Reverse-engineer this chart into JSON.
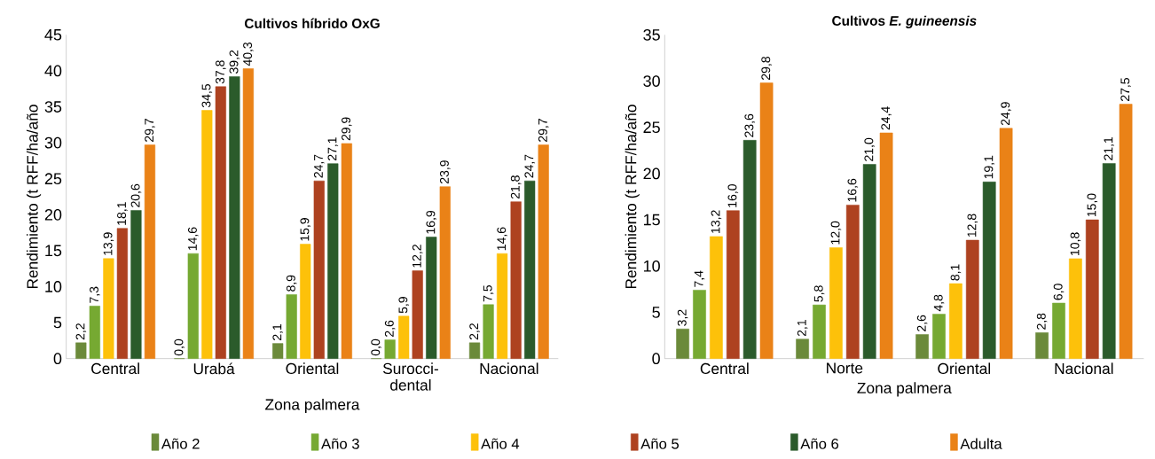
{
  "chart_data": [
    {
      "type": "bar",
      "title": "Cultivos híbrido OxG",
      "xlabel": "Zona palmera",
      "ylabel": "Rendimiento (t RFF/ha/año",
      "categories": [
        "Central",
        "Urabá",
        "Oriental",
        "Surocci-dental",
        "Nacional"
      ],
      "ylim": [
        0,
        45
      ],
      "yticks": [
        0,
        5,
        10,
        15,
        20,
        25,
        30,
        35,
        40,
        45
      ],
      "legend": "bottom",
      "series": [
        {
          "name": "Año 2",
          "color": "#6b8a3a",
          "values": [
            2.2,
            0.0,
            2.1,
            0.0,
            2.2
          ],
          "value_labels": [
            "2,2",
            "0,0",
            "2,1",
            "0,0",
            "2,2"
          ]
        },
        {
          "name": "Año 3",
          "color": "#76a932",
          "values": [
            7.3,
            14.6,
            8.9,
            2.6,
            7.5
          ],
          "value_labels": [
            "7,3",
            "14,6",
            "8,9",
            "2,6",
            "7,5"
          ]
        },
        {
          "name": "Año 4",
          "color": "#fdc10a",
          "values": [
            13.9,
            34.5,
            15.9,
            5.9,
            14.6
          ],
          "value_labels": [
            "13,9",
            "34,5",
            "15,9",
            "5,9",
            "14,6"
          ]
        },
        {
          "name": "Año 5",
          "color": "#ae4220",
          "values": [
            18.1,
            37.8,
            24.7,
            12.2,
            21.8
          ],
          "value_labels": [
            "18,1",
            "37,8",
            "24,7",
            "12,2",
            "21,8"
          ]
        },
        {
          "name": "Año 6",
          "color": "#2b5b2b",
          "values": [
            20.6,
            39.2,
            27.1,
            16.9,
            24.7
          ],
          "value_labels": [
            "20,6",
            "39,2",
            "27,1",
            "16,9",
            "24,7"
          ]
        },
        {
          "name": "Adulta",
          "color": "#ea8217",
          "values": [
            29.7,
            40.3,
            29.9,
            23.9,
            29.7
          ],
          "value_labels": [
            "29,7",
            "40,3",
            "29,9",
            "23,9",
            "29,7"
          ]
        }
      ]
    },
    {
      "type": "bar",
      "title": "Cultivos *E. guineensis*",
      "xlabel": "Zona palmera",
      "ylabel": "Rendimiento (t RFF/ha/año",
      "categories": [
        "Central",
        "Norte",
        "Oriental",
        "Nacional"
      ],
      "ylim": [
        0,
        35
      ],
      "yticks": [
        0,
        5,
        10,
        15,
        20,
        25,
        30,
        35
      ],
      "series": [
        {
          "color": "#6b8a3a",
          "values": [
            3.2,
            2.1,
            2.6,
            2.8
          ],
          "value_labels": [
            "3,2",
            "2,1",
            "2,6",
            "2,8"
          ]
        },
        {
          "color": "#76a932",
          "values": [
            7.4,
            5.8,
            4.8,
            6.0
          ],
          "value_labels": [
            "7,4",
            "5,8",
            "4,8",
            "6,0"
          ]
        },
        {
          "color": "#fdc10a",
          "values": [
            13.2,
            12.0,
            8.1,
            10.8
          ],
          "value_labels": [
            "13,2",
            "12,0",
            "8,1",
            "10,8"
          ]
        },
        {
          "color": "#ae4220",
          "values": [
            16.0,
            16.6,
            12.8,
            15.0
          ],
          "value_labels": [
            "16,0",
            "16,6",
            "12,8",
            "15,0"
          ]
        },
        {
          "color": "#2b5b2b",
          "values": [
            23.6,
            21.0,
            19.1,
            21.1
          ],
          "value_labels": [
            "23,6",
            "21,0",
            "19,1",
            "21,1"
          ]
        },
        {
          "color": "#ea8217",
          "values": [
            29.8,
            24.4,
            24.9,
            27.5
          ],
          "value_labels": [
            "29,8",
            "24,4",
            "24,9",
            "27,5"
          ]
        }
      ]
    }
  ]
}
